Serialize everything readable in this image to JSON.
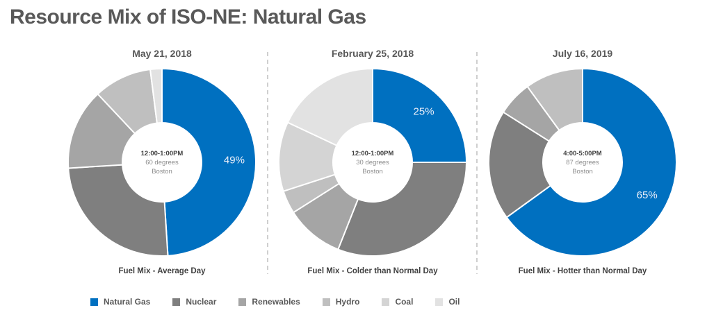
{
  "title": "Resource Mix of ISO-NE: Natural Gas",
  "chart_data": [
    {
      "type": "pie",
      "donut": true,
      "title": "May 21, 2018",
      "center": [
        "12:00-1:00PM",
        "60 degrees",
        "Boston"
      ],
      "caption": "Fuel Mix - Average Day",
      "categories": [
        "Natural Gas",
        "Nuclear",
        "Renewables",
        "Hydro",
        "Coal",
        "Oil"
      ],
      "values": [
        49,
        25,
        14,
        10,
        0,
        2
      ],
      "label": "49%"
    },
    {
      "type": "pie",
      "donut": true,
      "title": "February 25, 2018",
      "center": [
        "12:00-1:00PM",
        "30 degrees",
        "Boston"
      ],
      "caption": "Fuel Mix - Colder than Normal Day",
      "categories": [
        "Natural Gas",
        "Nuclear",
        "Renewables",
        "Hydro",
        "Coal",
        "Oil"
      ],
      "values": [
        25,
        31,
        10,
        4,
        12,
        18
      ],
      "label": "25%"
    },
    {
      "type": "pie",
      "donut": true,
      "title": "July 16, 2019",
      "center": [
        "4:00-5:00PM",
        "87 degrees",
        "Boston"
      ],
      "caption": "Fuel Mix - Hotter than Normal Day",
      "categories": [
        "Natural Gas",
        "Nuclear",
        "Renewables",
        "Hydro",
        "Coal",
        "Oil"
      ],
      "values": [
        65,
        19,
        6,
        10,
        0,
        0
      ],
      "label": "65%"
    }
  ],
  "legend": {
    "placement": "bottom",
    "items": [
      {
        "label": "Natural Gas",
        "color": "#0070c0"
      },
      {
        "label": "Nuclear",
        "color": "#7f7f7f"
      },
      {
        "label": "Renewables",
        "color": "#a5a5a5"
      },
      {
        "label": "Hydro",
        "color": "#bfbfbf"
      },
      {
        "label": "Coal",
        "color": "#d4d4d4"
      },
      {
        "label": "Oil",
        "color": "#e2e2e2"
      }
    ]
  }
}
